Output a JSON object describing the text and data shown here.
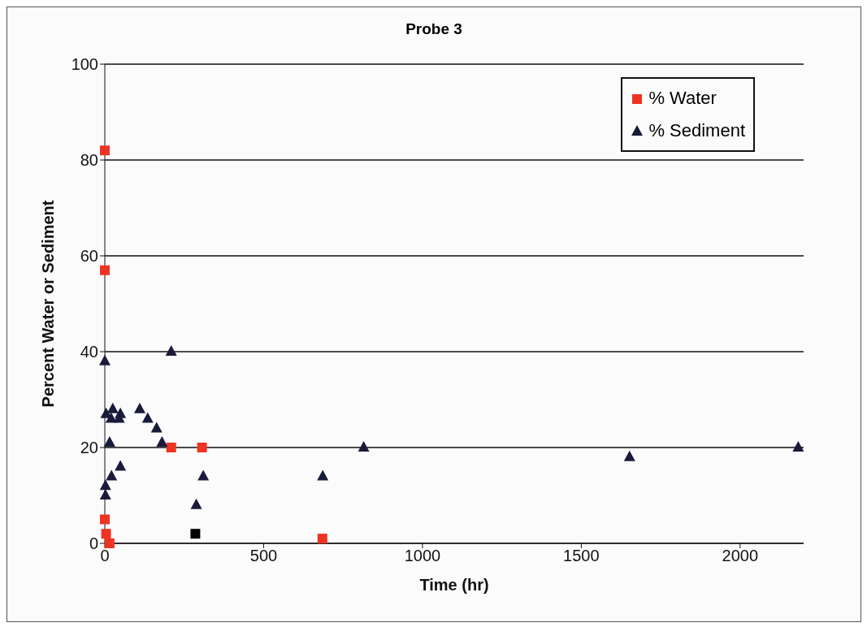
{
  "chart_data": {
    "type": "scatter",
    "title": "Probe 3",
    "xlabel": "Time (hr)",
    "ylabel": "Percent Water or Sediment",
    "xlim": [
      0,
      2200
    ],
    "xticks": [
      0,
      500,
      1000,
      1500,
      2000
    ],
    "ylim": [
      0,
      100
    ],
    "yticks": [
      0,
      20,
      40,
      60,
      80,
      100
    ],
    "grid": "y",
    "legend": "top right",
    "series": [
      {
        "name": "% Water",
        "color": "#ee3322",
        "marker": "square",
        "x": [
          0,
          0,
          0,
          4,
          15,
          209,
          306,
          685
        ],
        "values": [
          82,
          57,
          5,
          2,
          0,
          20,
          20,
          1
        ]
      },
      {
        "name": "% Sediment",
        "color": "#1a1a3a",
        "marker": "triangle",
        "x": [
          0,
          209,
          4,
          25,
          49,
          110,
          20,
          45,
          135,
          163,
          180,
          15,
          49,
          21,
          310,
          686,
          2,
          2,
          288,
          815,
          1652,
          2183
        ],
        "values": [
          38,
          40,
          27,
          28,
          27,
          28,
          26,
          26,
          26,
          24,
          21,
          21,
          16,
          14,
          14,
          14,
          12,
          10,
          8,
          20,
          18,
          20
        ]
      },
      {
        "color": "#000000",
        "marker": "square",
        "x": [
          285
        ],
        "values": [
          2
        ]
      }
    ]
  }
}
